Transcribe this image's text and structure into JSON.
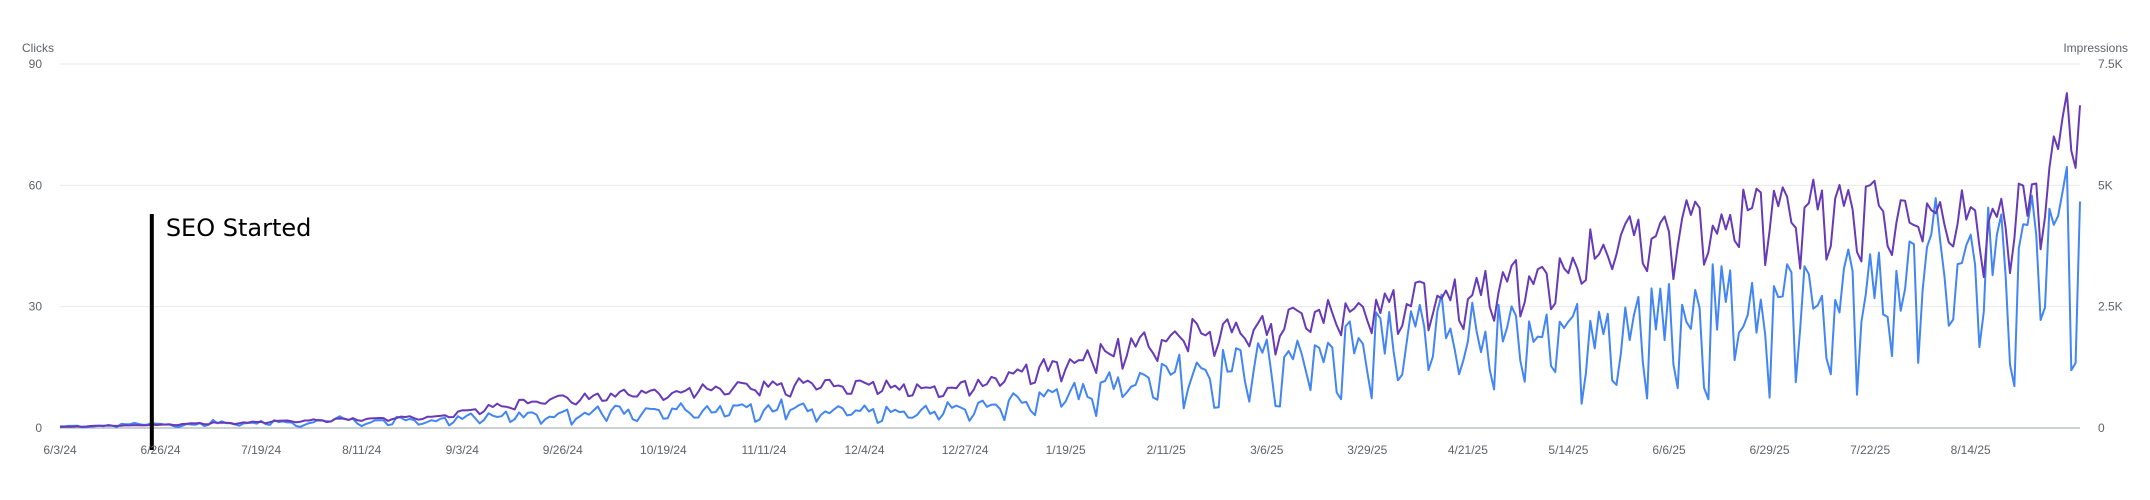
{
  "chart_data": {
    "type": "line",
    "y_left": {
      "label": "Clicks",
      "range": [
        0,
        90
      ],
      "ticks": [
        0,
        30,
        60,
        90
      ],
      "tick_labels": [
        "0",
        "30",
        "60",
        "90"
      ]
    },
    "y_right": {
      "label": "Impressions",
      "range": [
        0,
        7500
      ],
      "ticks": [
        0,
        2500,
        5000,
        7500
      ],
      "tick_labels": [
        "0",
        "2.5K",
        "5K",
        "7.5K"
      ]
    },
    "x": {
      "start": "2024-06-03",
      "end": "2025-09-08",
      "ticks": [
        "2024-06-03",
        "2024-06-26",
        "2024-07-19",
        "2024-08-11",
        "2024-09-03",
        "2024-09-26",
        "2024-10-19",
        "2024-11-11",
        "2024-12-04",
        "2024-12-27",
        "2025-01-19",
        "2025-02-11",
        "2025-03-06",
        "2025-03-29",
        "2025-04-21",
        "2025-05-14",
        "2025-06-06",
        "2025-06-29",
        "2025-07-22",
        "2025-08-14"
      ],
      "tick_labels": [
        "6/3/24",
        "6/26/24",
        "7/19/24",
        "8/11/24",
        "9/3/24",
        "9/26/24",
        "10/19/24",
        "11/11/24",
        "12/4/24",
        "12/27/24",
        "1/19/25",
        "2/11/25",
        "3/6/25",
        "3/29/25",
        "4/21/25",
        "5/14/25",
        "6/6/25",
        "6/29/25",
        "7/22/25",
        "8/14/25"
      ]
    },
    "series": [
      {
        "name": "Clicks",
        "axis": "left",
        "color": "#4285f4",
        "points": [
          [
            "2024-06-03",
            0.5
          ],
          [
            "2024-06-10",
            0.3
          ],
          [
            "2024-06-17",
            0.8
          ],
          [
            "2024-06-24",
            1.0
          ],
          [
            "2024-07-01",
            0.6
          ],
          [
            "2024-07-08",
            1.4
          ],
          [
            "2024-07-15",
            0.9
          ],
          [
            "2024-07-22",
            1.5
          ],
          [
            "2024-07-29",
            0.7
          ],
          [
            "2024-08-05",
            2.5
          ],
          [
            "2024-08-12",
            1.1
          ],
          [
            "2024-08-19",
            2.0
          ],
          [
            "2024-08-26",
            1.2
          ],
          [
            "2024-09-02",
            2.4
          ],
          [
            "2024-09-09",
            2.8
          ],
          [
            "2024-09-16",
            3.0
          ],
          [
            "2024-09-23",
            2.6
          ],
          [
            "2024-09-30",
            3.5
          ],
          [
            "2024-10-07",
            4.0
          ],
          [
            "2024-10-14",
            3.2
          ],
          [
            "2024-10-21",
            4.5
          ],
          [
            "2024-10-28",
            3.8
          ],
          [
            "2024-11-04",
            5.0
          ],
          [
            "2024-11-11",
            4.6
          ],
          [
            "2024-11-18",
            5.5
          ],
          [
            "2024-11-25",
            4.2
          ],
          [
            "2024-12-02",
            4.8
          ],
          [
            "2024-12-09",
            4.0
          ],
          [
            "2024-12-16",
            3.5
          ],
          [
            "2024-12-23",
            4.5
          ],
          [
            "2024-12-30",
            4.8
          ],
          [
            "2025-01-06",
            5.8
          ],
          [
            "2025-01-13",
            6.5
          ],
          [
            "2025-01-20",
            8.0
          ],
          [
            "2025-01-27",
            9.5
          ],
          [
            "2025-02-03",
            11.0
          ],
          [
            "2025-02-10",
            12.5
          ],
          [
            "2025-02-17",
            14.0
          ],
          [
            "2025-02-24",
            13.5
          ],
          [
            "2025-03-03",
            15.0
          ],
          [
            "2025-03-10",
            16.0
          ],
          [
            "2025-03-17",
            18.5
          ],
          [
            "2025-03-24",
            19.0
          ],
          [
            "2025-03-31",
            20.5
          ],
          [
            "2025-04-07",
            22.0
          ],
          [
            "2025-04-14",
            23.5
          ],
          [
            "2025-04-21",
            21.0
          ],
          [
            "2025-04-28",
            22.5
          ],
          [
            "2025-05-05",
            19.0
          ],
          [
            "2025-05-12",
            21.5
          ],
          [
            "2025-05-19",
            23.0
          ],
          [
            "2025-05-26",
            22.0
          ],
          [
            "2025-06-02",
            26.0
          ],
          [
            "2025-06-09",
            24.0
          ],
          [
            "2025-06-16",
            28.0
          ],
          [
            "2025-06-23",
            27.5
          ],
          [
            "2025-06-30",
            29.0
          ],
          [
            "2025-07-07",
            31.0
          ],
          [
            "2025-07-14",
            30.0
          ],
          [
            "2025-07-21",
            32.0
          ],
          [
            "2025-07-28",
            33.0
          ],
          [
            "2025-08-04",
            40.0
          ],
          [
            "2025-08-11",
            42.0
          ],
          [
            "2025-08-18",
            38.0
          ],
          [
            "2025-08-25",
            36.0
          ],
          [
            "2025-09-01",
            44.0
          ],
          [
            "2025-09-08",
            56.0
          ]
        ]
      },
      {
        "name": "Impressions",
        "axis": "right",
        "color": "#673ab7",
        "points": [
          [
            "2024-06-03",
            20
          ],
          [
            "2024-06-10",
            40
          ],
          [
            "2024-06-17",
            50
          ],
          [
            "2024-06-24",
            60
          ],
          [
            "2024-07-01",
            80
          ],
          [
            "2024-07-08",
            100
          ],
          [
            "2024-07-15",
            110
          ],
          [
            "2024-07-22",
            130
          ],
          [
            "2024-07-29",
            150
          ],
          [
            "2024-08-05",
            170
          ],
          [
            "2024-08-12",
            180
          ],
          [
            "2024-08-19",
            200
          ],
          [
            "2024-08-26",
            220
          ],
          [
            "2024-09-02",
            300
          ],
          [
            "2024-09-09",
            420
          ],
          [
            "2024-09-16",
            500
          ],
          [
            "2024-09-23",
            560
          ],
          [
            "2024-09-30",
            600
          ],
          [
            "2024-10-07",
            680
          ],
          [
            "2024-10-14",
            720
          ],
          [
            "2024-10-21",
            760
          ],
          [
            "2024-10-28",
            800
          ],
          [
            "2024-11-04",
            820
          ],
          [
            "2024-11-11",
            850
          ],
          [
            "2024-11-18",
            880
          ],
          [
            "2024-11-25",
            900
          ],
          [
            "2024-12-02",
            870
          ],
          [
            "2024-12-09",
            850
          ],
          [
            "2024-12-16",
            780
          ],
          [
            "2024-12-23",
            800
          ],
          [
            "2024-12-30",
            880
          ],
          [
            "2025-01-06",
            1050
          ],
          [
            "2025-01-13",
            1200
          ],
          [
            "2025-01-20",
            1350
          ],
          [
            "2025-01-27",
            1500
          ],
          [
            "2025-02-03",
            1650
          ],
          [
            "2025-02-10",
            1800
          ],
          [
            "2025-02-17",
            1950
          ],
          [
            "2025-02-24",
            2050
          ],
          [
            "2025-03-03",
            1950
          ],
          [
            "2025-03-10",
            2100
          ],
          [
            "2025-03-17",
            2200
          ],
          [
            "2025-03-24",
            2400
          ],
          [
            "2025-03-31",
            2450
          ],
          [
            "2025-04-07",
            2600
          ],
          [
            "2025-04-14",
            2700
          ],
          [
            "2025-04-21",
            2800
          ],
          [
            "2025-04-28",
            2900
          ],
          [
            "2025-05-05",
            3100
          ],
          [
            "2025-05-12",
            3300
          ],
          [
            "2025-05-19",
            3600
          ],
          [
            "2025-05-26",
            3800
          ],
          [
            "2025-06-02",
            4000
          ],
          [
            "2025-06-09",
            4200
          ],
          [
            "2025-06-16",
            4100
          ],
          [
            "2025-06-23",
            4300
          ],
          [
            "2025-06-30",
            4400
          ],
          [
            "2025-07-07",
            4500
          ],
          [
            "2025-07-14",
            4500
          ],
          [
            "2025-07-21",
            4400
          ],
          [
            "2025-07-28",
            4300
          ],
          [
            "2025-08-04",
            4500
          ],
          [
            "2025-08-11",
            4300
          ],
          [
            "2025-08-18",
            4200
          ],
          [
            "2025-08-25",
            4400
          ],
          [
            "2025-09-01",
            5200
          ],
          [
            "2025-09-08",
            6650
          ]
        ]
      }
    ],
    "annotations": [
      {
        "date": "2024-06-24",
        "text": "SEO Started",
        "color": "#000000"
      }
    ],
    "grid": true,
    "legend": "none"
  }
}
